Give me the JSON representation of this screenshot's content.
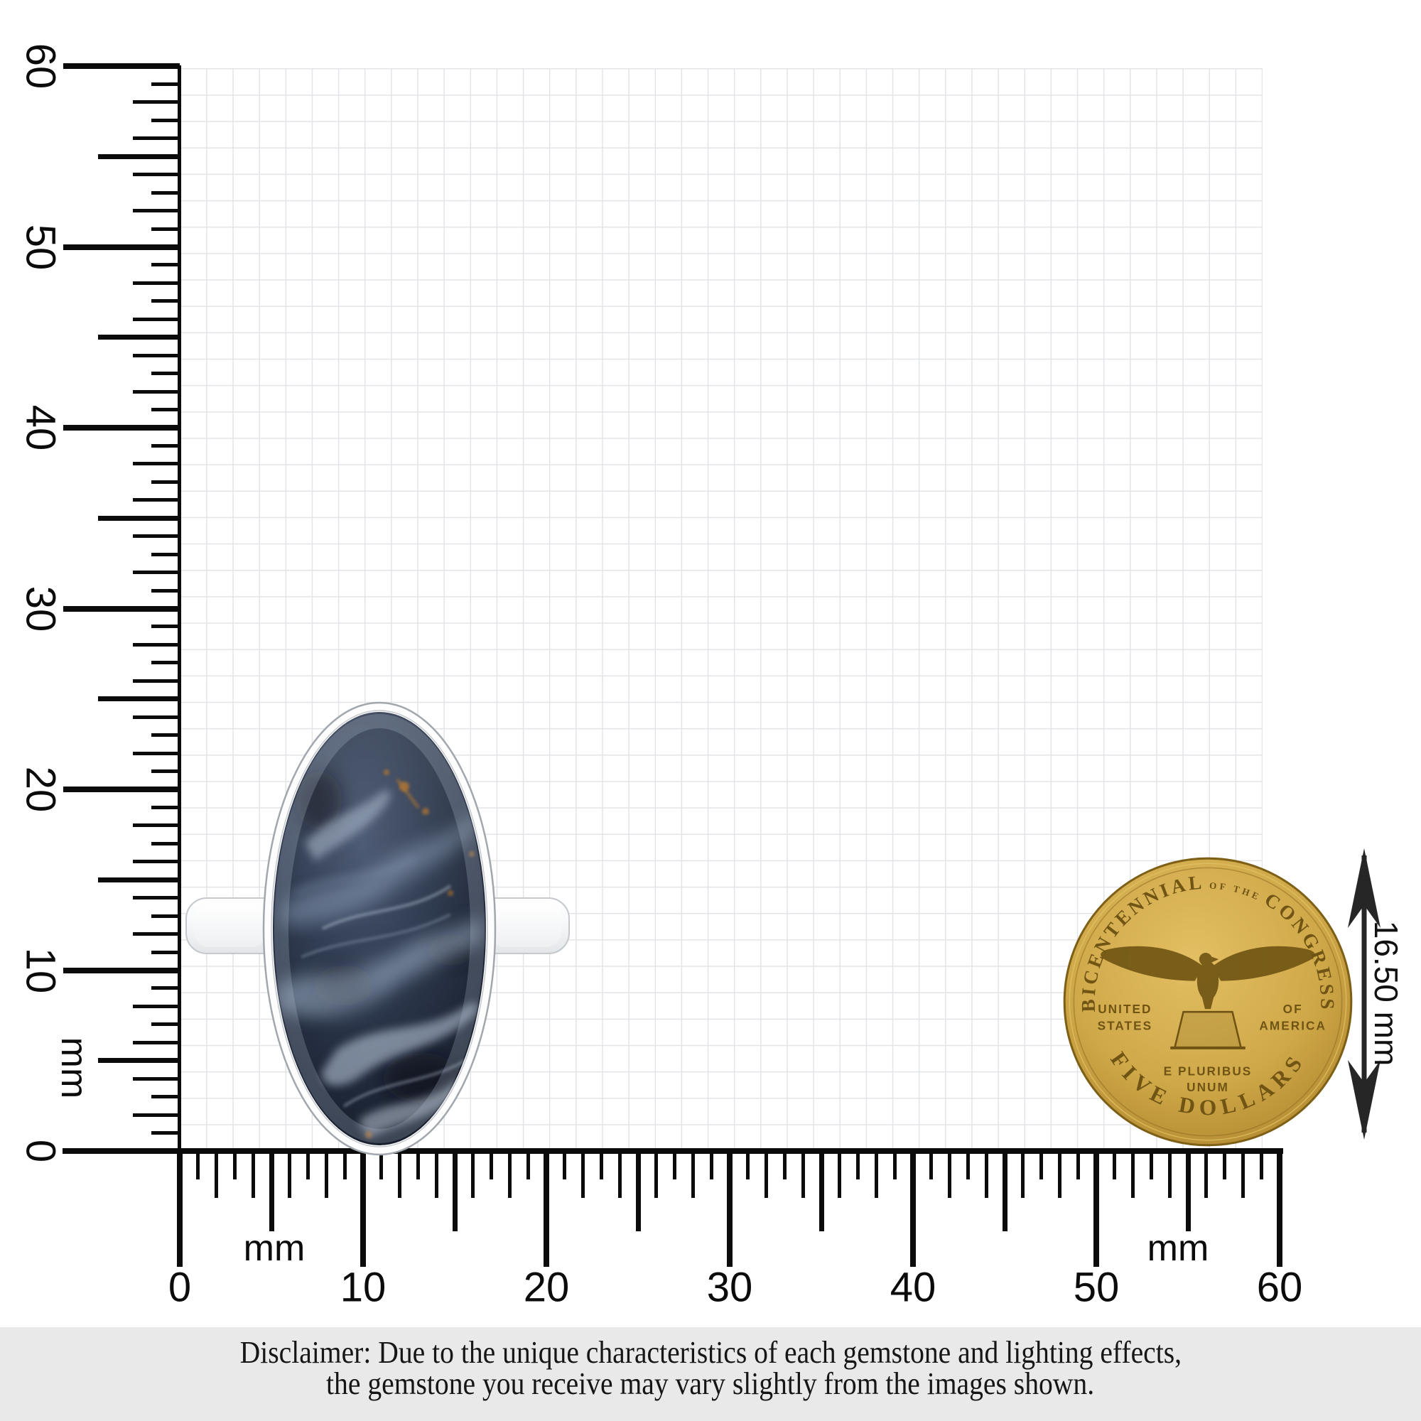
{
  "rulers": {
    "left_labels": [
      "0",
      "10",
      "20",
      "30",
      "40",
      "50",
      "60"
    ],
    "bottom_labels": [
      "0",
      "10",
      "20",
      "30",
      "40",
      "50",
      "60"
    ],
    "left_unit_label": "mm",
    "bottom_unit_labels": [
      "mm",
      "mm"
    ]
  },
  "measurement": {
    "coin_diameter_label": "16.50 mm"
  },
  "coin": {
    "arc_top_1": "BICENTENNIAL",
    "arc_top_2": "OF THE",
    "arc_top_3": "CONGRESS",
    "left_line1": "UNITED",
    "left_line2": "STATES",
    "right_line1": "OF",
    "right_line2": "AMERICA",
    "motto_line1": "E PLURIBUS",
    "motto_line2": "UNUM",
    "arc_bottom": "FIVE DOLLARS"
  },
  "disclaimer": {
    "line1": "Disclaimer: Due to the unique characteristics of each gemstone and lighting effects,",
    "line2": "the gemstone you receive may vary slightly from the images shown."
  },
  "colors": {
    "tick": "#0b0b0b",
    "grid_line": "#e2e4e7",
    "disclaimer_bg": "#e9e9e9",
    "coin_gold": "#cda94a",
    "coin_relief": "#6f5414",
    "stone_dark": "#1b2333",
    "stone_light": "#9fb2c9",
    "silver": "#f4f5f7",
    "arrow": "#262626"
  }
}
